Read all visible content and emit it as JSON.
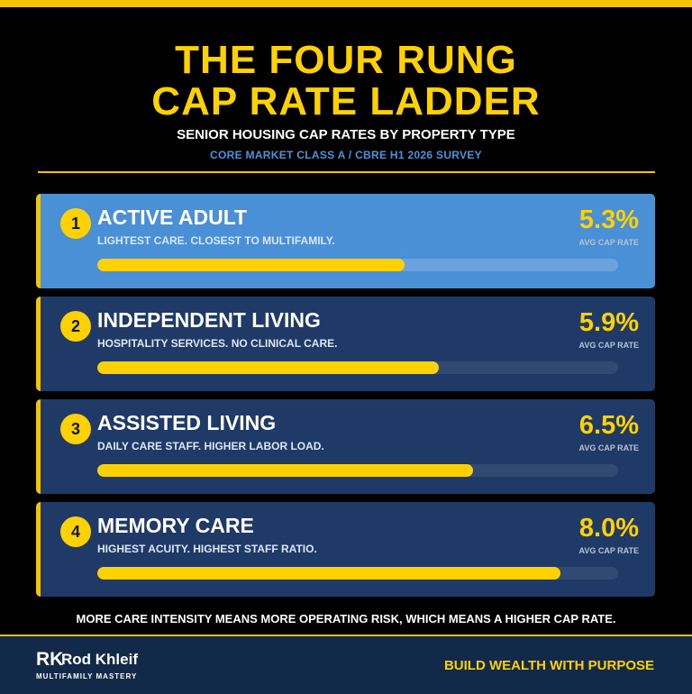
{
  "header": {
    "title_line1": "THE FOUR RUNG",
    "title_line2": "CAP RATE LADDER",
    "subtitle": "SENIOR HOUSING CAP RATES BY PROPERTY TYPE",
    "source": "CORE MARKET CLASS A / CBRE H1 2026 SURVEY"
  },
  "rungs": [
    {
      "number": "1",
      "title": "ACTIVE ADULT",
      "description": "LIGHTEST CARE. CLOSEST TO MULTIFAMILY.",
      "rate": "5.3%",
      "rate_label": "AVG CAP RATE",
      "bar_fraction": 0.59
    },
    {
      "number": "2",
      "title": "INDEPENDENT LIVING",
      "description": "HOSPITALITY SERVICES. NO CLINICAL CARE.",
      "rate": "5.9%",
      "rate_label": "AVG CAP RATE",
      "bar_fraction": 0.656
    },
    {
      "number": "3",
      "title": "ASSISTED LIVING",
      "description": "DAILY CARE STAFF. HIGHER LABOR LOAD.",
      "rate": "6.5%",
      "rate_label": "AVG CAP RATE",
      "bar_fraction": 0.722
    },
    {
      "number": "4",
      "title": "MEMORY CARE",
      "description": "HIGHEST ACUITY. HIGHEST STAFF RATIO.",
      "rate": "8.0%",
      "rate_label": "AVG CAP RATE",
      "bar_fraction": 0.889
    }
  ],
  "footnote": "MORE CARE INTENSITY MEANS MORE OPERATING RISK, WHICH MEANS A HIGHER CAP RATE.",
  "footer": {
    "logo_mark": "RK",
    "brand_name": "Rod Khleif",
    "brand_tagline": "MULTIFAMILY MASTERY",
    "slogan": "BUILD WEALTH WITH PURPOSE"
  },
  "colors": {
    "accent_yellow": "#ffd100",
    "card_dark": "#1f3a66",
    "card_highlight": "#4a90d6",
    "footer_navy": "#13294a",
    "source_blue": "#4a94dc"
  }
}
